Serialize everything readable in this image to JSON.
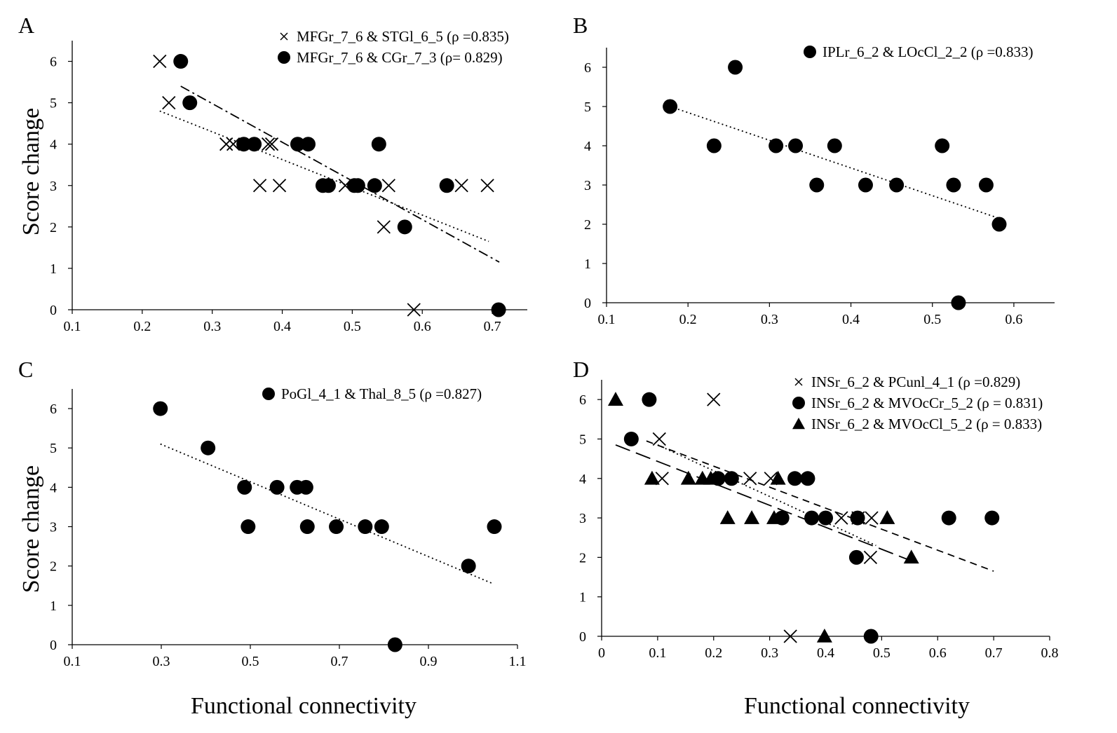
{
  "figure": {
    "ylabel": "Score change",
    "xlabel": "Functional connectivity"
  },
  "chart_data": [
    {
      "panel": "A",
      "type": "scatter",
      "xlim": [
        0.1,
        0.75
      ],
      "ylim": [
        0,
        6.5
      ],
      "xticks": [
        "0.1",
        "0.2",
        "0.3",
        "0.4",
        "0.5",
        "0.6",
        "0.7"
      ],
      "yticks": [
        "0",
        "1",
        "2",
        "3",
        "4",
        "5",
        "6"
      ],
      "series": [
        {
          "name": "MFGr_7_6 & STGl_6_5 (ρ =0.835)",
          "marker": "x",
          "x": [
            0.225,
            0.238,
            0.32,
            0.33,
            0.38,
            0.385,
            0.368,
            0.396,
            0.49,
            0.552,
            0.545,
            0.656,
            0.693,
            0.588
          ],
          "y": [
            6,
            5,
            4,
            4,
            4,
            4,
            3,
            3,
            3,
            3,
            2,
            3,
            3,
            0
          ],
          "trendline": {
            "style": "dash-dot",
            "x": [
              0.255,
              0.71
            ],
            "y": [
              5.4,
              1.15
            ]
          }
        },
        {
          "name": "MFGr_7_6 & CGr_7_3 (ρ= 0.829)",
          "marker": "circle",
          "x": [
            0.255,
            0.268,
            0.345,
            0.36,
            0.422,
            0.437,
            0.538,
            0.458,
            0.466,
            0.503,
            0.508,
            0.532,
            0.635,
            0.575,
            0.709
          ],
          "y": [
            6,
            5,
            4,
            4,
            4,
            4,
            4,
            3,
            3,
            3,
            3,
            3,
            3,
            2,
            0
          ],
          "trendline": {
            "style": "dotted",
            "x": [
              0.225,
              0.695
            ],
            "y": [
              4.8,
              1.65
            ]
          }
        }
      ]
    },
    {
      "panel": "B",
      "type": "scatter",
      "xlim": [
        0.1,
        0.65
      ],
      "ylim": [
        0,
        6.5
      ],
      "xticks": [
        "0.1",
        "0.2",
        "0.3",
        "0.4",
        "0.5",
        "0.6"
      ],
      "yticks": [
        "0",
        "1",
        "2",
        "3",
        "4",
        "5",
        "6"
      ],
      "series": [
        {
          "name": "IPLr_6_2 & LOcCl_2_2 (ρ =0.833)",
          "marker": "circle",
          "x": [
            0.178,
            0.258,
            0.232,
            0.308,
            0.332,
            0.38,
            0.512,
            0.358,
            0.418,
            0.456,
            0.526,
            0.566,
            0.582,
            0.532
          ],
          "y": [
            5,
            6,
            4,
            4,
            4,
            4,
            4,
            3,
            3,
            3,
            3,
            3,
            2,
            0
          ],
          "trendline": {
            "style": "dotted",
            "x": [
              0.178,
              0.582
            ],
            "y": [
              5.0,
              2.15
            ]
          }
        }
      ]
    },
    {
      "panel": "C",
      "type": "scatter",
      "xlim": [
        0.1,
        1.1
      ],
      "ylim": [
        0,
        6.5
      ],
      "xticks": [
        "0.1",
        "0.3",
        "0.5",
        "0.7",
        "0.9",
        "1.1"
      ],
      "yticks": [
        "0",
        "1",
        "2",
        "3",
        "4",
        "5",
        "6"
      ],
      "series": [
        {
          "name": "PoGl_4_1 & Thal_8_5 (ρ =0.827)",
          "marker": "circle",
          "x": [
            0.298,
            0.405,
            0.487,
            0.56,
            0.605,
            0.625,
            0.495,
            0.628,
            0.693,
            0.758,
            0.795,
            1.048,
            0.99,
            0.825
          ],
          "y": [
            6,
            5,
            4,
            4,
            4,
            4,
            3,
            3,
            3,
            3,
            3,
            3,
            2,
            0
          ],
          "trendline": {
            "style": "dotted",
            "x": [
              0.298,
              1.045
            ],
            "y": [
              5.1,
              1.55
            ]
          }
        }
      ]
    },
    {
      "panel": "D",
      "type": "scatter",
      "xlim": [
        0,
        0.8
      ],
      "ylim": [
        0,
        6.5
      ],
      "xticks": [
        "0",
        "0.1",
        "0.2",
        "0.3",
        "0.4",
        "0.5",
        "0.6",
        "0.7",
        "0.8"
      ],
      "yticks": [
        "0",
        "1",
        "2",
        "3",
        "4",
        "5",
        "6"
      ],
      "series": [
        {
          "name": "INSr_6_2 & PCunl_4_1 (ρ =0.829)",
          "marker": "x",
          "x": [
            0.2,
            0.103,
            0.108,
            0.265,
            0.302,
            0.428,
            0.458,
            0.482,
            0.48,
            0.337
          ],
          "y": [
            6,
            5,
            4,
            4,
            4,
            3,
            3,
            3,
            2,
            0
          ],
          "trendline": {
            "style": "dotted",
            "x": [
              0.1,
              0.49
            ],
            "y": [
              4.85,
              2.3
            ]
          }
        },
        {
          "name": "INSr_6_2 & MVOcCr_5_2 (ρ = 0.831)",
          "marker": "circle",
          "x": [
            0.085,
            0.053,
            0.208,
            0.232,
            0.345,
            0.368,
            0.322,
            0.375,
            0.4,
            0.457,
            0.62,
            0.697,
            0.455,
            0.481
          ],
          "y": [
            6,
            5,
            4,
            4,
            4,
            4,
            3,
            3,
            3,
            3,
            3,
            3,
            2,
            0
          ],
          "trendline": {
            "style": "dashed",
            "x": [
              0.08,
              0.7
            ],
            "y": [
              4.95,
              1.65
            ]
          }
        },
        {
          "name": "INSr_6_2 & MVOcCl_5_2 (ρ = 0.833)",
          "marker": "triangle",
          "x": [
            0.025,
            0.09,
            0.155,
            0.18,
            0.195,
            0.315,
            0.225,
            0.268,
            0.308,
            0.51,
            0.553,
            0.398
          ],
          "y": [
            6,
            4,
            4,
            4,
            4,
            4,
            3,
            3,
            3,
            3,
            2,
            0
          ],
          "trendline": {
            "style": "long-dash",
            "x": [
              0.025,
              0.555
            ],
            "y": [
              4.85,
              1.9
            ]
          }
        }
      ]
    }
  ]
}
